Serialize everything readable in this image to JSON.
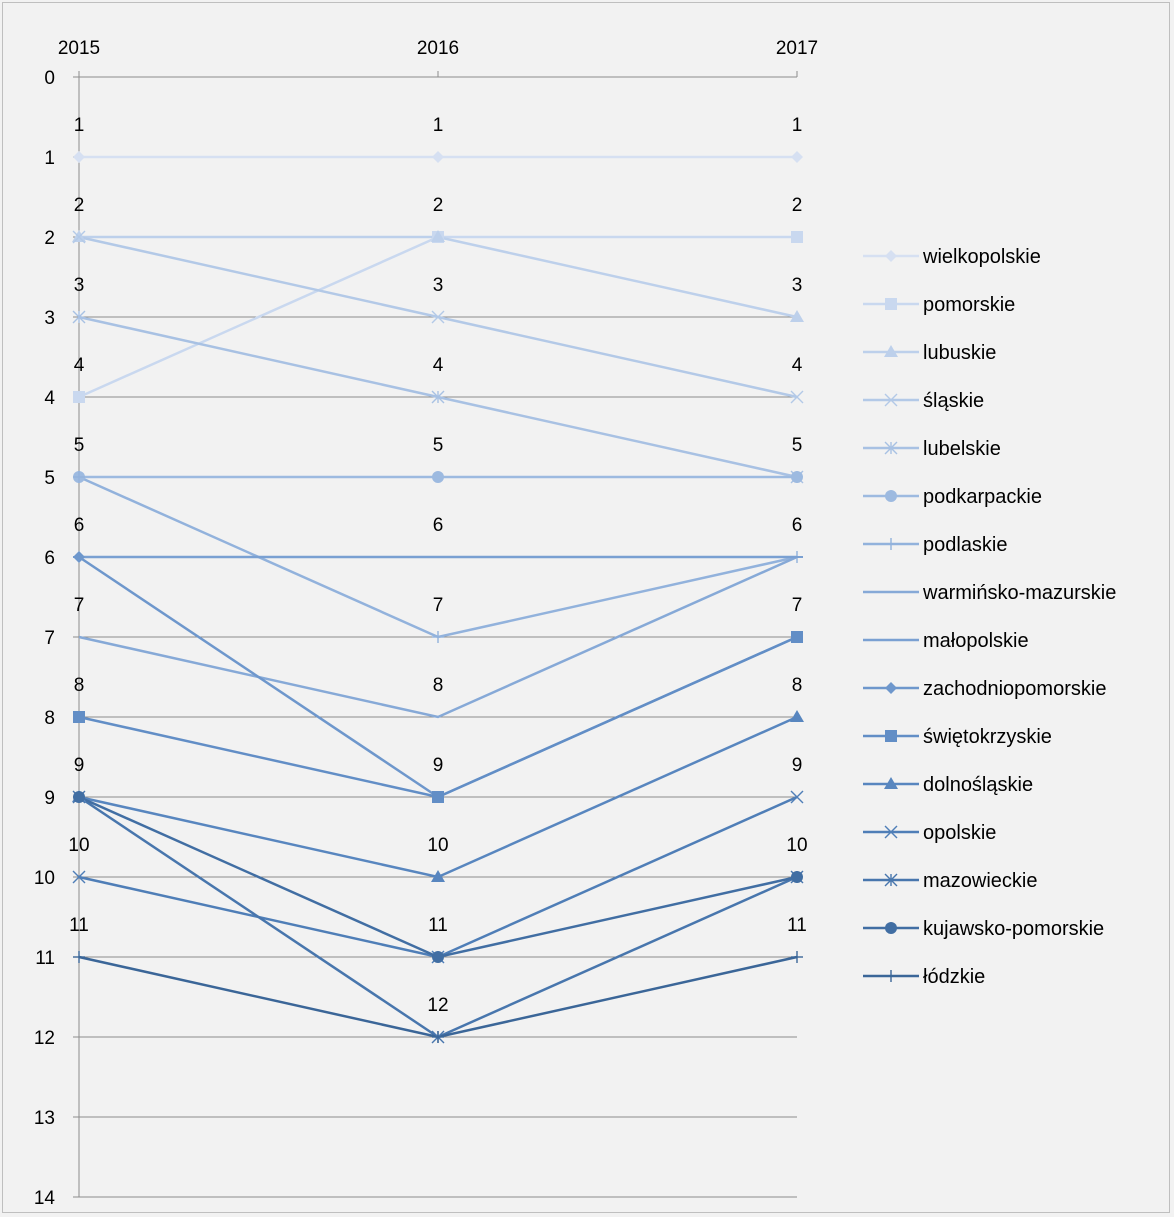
{
  "chart_data": {
    "type": "line",
    "x": [
      "2015",
      "2016",
      "2017"
    ],
    "ylim": [
      0,
      14
    ],
    "y_reversed": true,
    "y_ticks": [
      0,
      1,
      2,
      3,
      4,
      5,
      6,
      7,
      8,
      9,
      10,
      11,
      12,
      13,
      14
    ],
    "x_axis_position": "top",
    "grid": true,
    "legend_position": "right",
    "data_labels": true,
    "series": [
      {
        "name": "wielkopolskie",
        "values": [
          1,
          1,
          1
        ],
        "color": "#d6e0f2",
        "marker": "diamond"
      },
      {
        "name": "pomorskie",
        "values": [
          4,
          2,
          2
        ],
        "color": "#c9d8ef",
        "marker": "square"
      },
      {
        "name": "lubuskie",
        "values": [
          2,
          2,
          3
        ],
        "color": "#bdd0eb",
        "marker": "triangle"
      },
      {
        "name": "śląskie",
        "values": [
          2,
          3,
          4
        ],
        "color": "#b3c9e7",
        "marker": "x"
      },
      {
        "name": "lubelskie",
        "values": [
          3,
          4,
          5
        ],
        "color": "#a8c1e3",
        "marker": "star"
      },
      {
        "name": "podkarpackie",
        "values": [
          5,
          5,
          5
        ],
        "color": "#9dbae0",
        "marker": "circle"
      },
      {
        "name": "podlaskie",
        "values": [
          5,
          7,
          6
        ],
        "color": "#92b2dc",
        "marker": "plus"
      },
      {
        "name": "warmińsko-mazurskie",
        "values": [
          7,
          8,
          6
        ],
        "color": "#86a9d7",
        "marker": "none"
      },
      {
        "name": "małopolskie",
        "values": [
          6,
          6,
          6
        ],
        "color": "#7aa0d2",
        "marker": "dash"
      },
      {
        "name": "zachodniopomorskie",
        "values": [
          6,
          9,
          7
        ],
        "color": "#6e97cc",
        "marker": "diamond"
      },
      {
        "name": "świętokrzyskie",
        "values": [
          8,
          9,
          7
        ],
        "color": "#628ec6",
        "marker": "square"
      },
      {
        "name": "dolnośląskie",
        "values": [
          9,
          10,
          8
        ],
        "color": "#5886bf",
        "marker": "triangle"
      },
      {
        "name": "opolskie",
        "values": [
          10,
          11,
          9
        ],
        "color": "#4f7eb7",
        "marker": "x"
      },
      {
        "name": "mazowieckie",
        "values": [
          9,
          12,
          10
        ],
        "color": "#4876ad",
        "marker": "star"
      },
      {
        "name": "kujawsko-pomorskie",
        "values": [
          9,
          11,
          10
        ],
        "color": "#416ea3",
        "marker": "circle"
      },
      {
        "name": "łódzkie",
        "values": [
          11,
          12,
          11
        ],
        "color": "#3b6698",
        "marker": "plus"
      }
    ]
  }
}
